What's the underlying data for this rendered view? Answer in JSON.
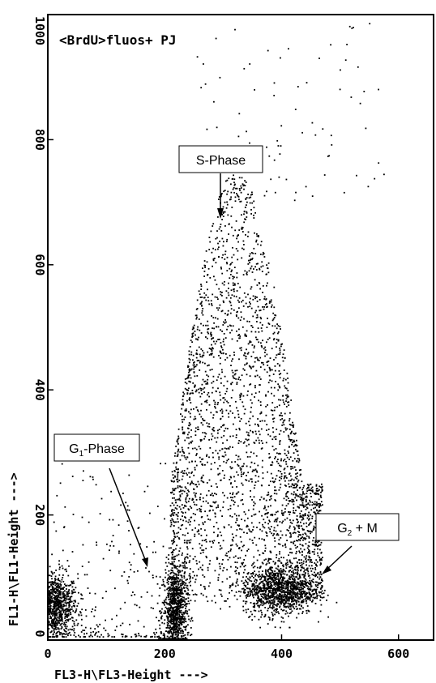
{
  "chart_data": {
    "type": "scatter",
    "title": "<BrdU>fluos+ PJ",
    "xlabel": "FL3-H\\FL3-Height --->",
    "ylabel": "FL1-H\\FL1-Height --->",
    "xlim": [
      0,
      660
    ],
    "ylim": [
      0,
      1000
    ],
    "x_ticks": [
      "0",
      "200",
      "400",
      "600"
    ],
    "y_ticks": [
      "0",
      "200",
      "400",
      "600",
      "800",
      "1000"
    ],
    "grid": false,
    "populations": [
      {
        "name": "debris",
        "x_center": 15,
        "y_center": 55,
        "x_spread": 18,
        "y_spread": 25
      },
      {
        "name": "G1-Phase",
        "x_center": 218,
        "y_center": 45,
        "x_spread": 10,
        "y_spread": 35
      },
      {
        "name": "S-Phase",
        "x_range": [
          210,
          470
        ],
        "y_range": [
          60,
          760
        ]
      },
      {
        "name": "G2 + M",
        "x_center": 395,
        "y_center": 80,
        "x_spread": 30,
        "y_spread": 20
      }
    ],
    "annotations": [
      {
        "id": "s",
        "label": "S-Phase",
        "arrow_to": [
          300,
          690
        ]
      },
      {
        "id": "g1",
        "label": "G",
        "sub": "1",
        "suffix": "-Phase",
        "arrow_to": [
          178,
          110
        ]
      },
      {
        "id": "g2",
        "label": "G",
        "sub": "2",
        "suffix": " + M",
        "arrow_to": [
          478,
          95
        ]
      }
    ]
  }
}
